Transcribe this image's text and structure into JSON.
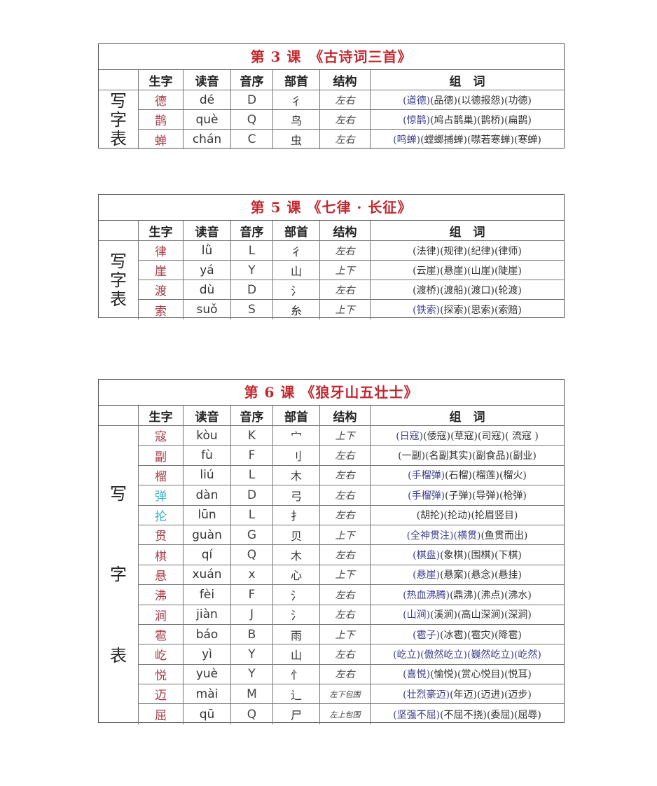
{
  "headers": {
    "char": "生字",
    "pinyin": "读音",
    "initial": "音序",
    "radical": "部首",
    "structure": "结构",
    "words": "组　词"
  },
  "side_label": [
    "写",
    "字",
    "表"
  ],
  "colors": {
    "title": "#c0282e",
    "char": "#a33b48",
    "char_alt": "#3aafc4",
    "word_highlight": "#3d3f8c"
  },
  "lessons": [
    {
      "title": "第 3 课　《古诗词三首》",
      "rows": [
        {
          "char": "德",
          "pinyin": "dé",
          "initial": "D",
          "radical": "彳",
          "structure": "左右",
          "words": [
            "(道德)",
            "(品德)",
            "(以德报怨)",
            "(功德)"
          ],
          "hl": [
            0
          ]
        },
        {
          "char": "鹊",
          "pinyin": "què",
          "initial": "Q",
          "radical": "鸟",
          "structure": "左右",
          "words": [
            "(惊鹊)",
            "(鸠占鹊巢)",
            "(鹊桥)",
            "(扁鹊)"
          ],
          "hl": [
            0
          ]
        },
        {
          "char": "蝉",
          "pinyin": "chán",
          "initial": "C",
          "radical": "虫",
          "structure": "左右",
          "words": [
            "(鸣蝉)",
            "(螳螂捕蝉)",
            "(噤若寒蝉)",
            "(寒蝉)"
          ],
          "hl": [
            0
          ]
        }
      ]
    },
    {
      "title": "第 5 课 《七律 · 长征》",
      "rows": [
        {
          "char": "律",
          "pinyin": "lǜ",
          "initial": "L",
          "radical": "彳",
          "structure": "左右",
          "words": [
            "(法律)",
            "(规律)",
            "(纪律)",
            "(律师)"
          ],
          "hl": []
        },
        {
          "char": "崖",
          "pinyin": "yá",
          "initial": "Y",
          "radical": "山",
          "structure": "上下",
          "words": [
            "(云崖)",
            "(悬崖)",
            "(山崖)",
            "(陡崖)"
          ],
          "hl": []
        },
        {
          "char": "渡",
          "pinyin": "dù",
          "initial": "D",
          "radical": "氵",
          "structure": "左右",
          "words": [
            "(渡桥)",
            "(渡船)",
            "(渡口)",
            "(轮渡)"
          ],
          "hl": []
        },
        {
          "char": "索",
          "pinyin": "suǒ",
          "initial": "S",
          "radical": "糸",
          "structure": "上下",
          "words": [
            "(铁索)",
            "(探索)",
            "(思索)",
            "(索赔)"
          ],
          "hl": [
            0
          ]
        }
      ]
    },
    {
      "title": "第 6 课 《狼牙山五壮士》",
      "rows": [
        {
          "char": "寇",
          "pinyin": "kòu",
          "initial": "K",
          "radical": "宀",
          "structure": "上下",
          "words": [
            "(日寇)",
            "(倭寇)",
            "(草寇)",
            "(司寇)",
            "( 流寇 )"
          ],
          "hl": [
            0
          ]
        },
        {
          "char": "副",
          "pinyin": "fù",
          "initial": "F",
          "radical": "刂",
          "structure": "左右",
          "words": [
            "(一副)",
            "(名副其实)",
            "(副食品)",
            "(副业)"
          ],
          "hl": []
        },
        {
          "char": "榴",
          "pinyin": "liú",
          "initial": "L",
          "radical": "木",
          "structure": "左右",
          "words": [
            "(手榴弹)",
            "(石榴)",
            "(榴莲)",
            "(榴火)"
          ],
          "hl": [
            0
          ]
        },
        {
          "char": "弹",
          "pinyin": "dàn",
          "initial": "D",
          "radical": "弓",
          "structure": "左右",
          "words": [
            "(手榴弹)",
            "(子弹)",
            "(导弹)",
            "(枪弹)"
          ],
          "hl": [
            0
          ],
          "alt": true
        },
        {
          "char": "抡",
          "pinyin": "lūn",
          "initial": "L",
          "radical": "扌",
          "structure": "左右",
          "words": [
            "(胡抡)",
            "(抡动)",
            "(抡眉竖目)"
          ],
          "hl": [],
          "alt": true
        },
        {
          "char": "贯",
          "pinyin": "guàn",
          "initial": "G",
          "radical": "贝",
          "structure": "上下",
          "words": [
            "(全神贯注)",
            "(横贯)",
            "(鱼贯而出)"
          ],
          "hl": [
            0,
            1
          ]
        },
        {
          "char": "棋",
          "pinyin": "qí",
          "initial": "Q",
          "radical": "木",
          "structure": "左右",
          "words": [
            "(棋盘)",
            "(象棋)",
            "(围棋)",
            "(下棋)"
          ],
          "hl": [
            0
          ]
        },
        {
          "char": "悬",
          "pinyin": "xuán",
          "initial": "x",
          "radical": "心",
          "structure": "上下",
          "words": [
            "(悬崖)",
            "(悬案)",
            "(悬念)",
            "(悬挂)"
          ],
          "hl": [
            0
          ]
        },
        {
          "char": "沸",
          "pinyin": "fèi",
          "initial": "F",
          "radical": "氵",
          "structure": "左右",
          "words": [
            "(热血沸腾)",
            "(鼎沸)",
            "(沸点)",
            "(沸水)"
          ],
          "hl": [
            0
          ]
        },
        {
          "char": "涧",
          "pinyin": "jiàn",
          "initial": "J",
          "radical": "氵",
          "structure": "左右",
          "words": [
            "(山涧)",
            "(溪涧)",
            "(高山深涧)",
            "(深涧)"
          ],
          "hl": [
            0
          ]
        },
        {
          "char": "雹",
          "pinyin": "báo",
          "initial": "B",
          "radical": "雨",
          "structure": "上下",
          "words": [
            "(雹子)",
            "(冰雹)",
            "(雹灾)",
            "(降雹)"
          ],
          "hl": [
            0
          ]
        },
        {
          "char": "屹",
          "pinyin": "yì",
          "initial": "Y",
          "radical": "山",
          "structure": "左右",
          "words": [
            "(屹立)",
            "(傲然屹立)",
            "(巍然屹立)",
            "(屹然)"
          ],
          "hl": [
            0,
            1,
            2,
            3
          ]
        },
        {
          "char": "悦",
          "pinyin": "yuè",
          "initial": "Y",
          "radical": "忄",
          "structure": "左右",
          "words": [
            "(喜悦)",
            "(愉悦)",
            "(赏心悦目)",
            "(悦耳)"
          ],
          "hl": [
            0
          ]
        },
        {
          "char": "迈",
          "pinyin": "mài",
          "initial": "M",
          "radical": "辶",
          "structure": "左下包围",
          "words": [
            "(壮烈豪迈)",
            "(年迈)",
            "(迈进)",
            "(迈步)"
          ],
          "hl": [
            0
          ]
        },
        {
          "char": "屈",
          "pinyin": "qū",
          "initial": "Q",
          "radical": "尸",
          "structure": "左上包围",
          "words": [
            "(坚强不屈)",
            "(不屈不挠)",
            "(委屈)",
            "(屈辱)"
          ],
          "hl": [
            0
          ]
        }
      ]
    }
  ]
}
